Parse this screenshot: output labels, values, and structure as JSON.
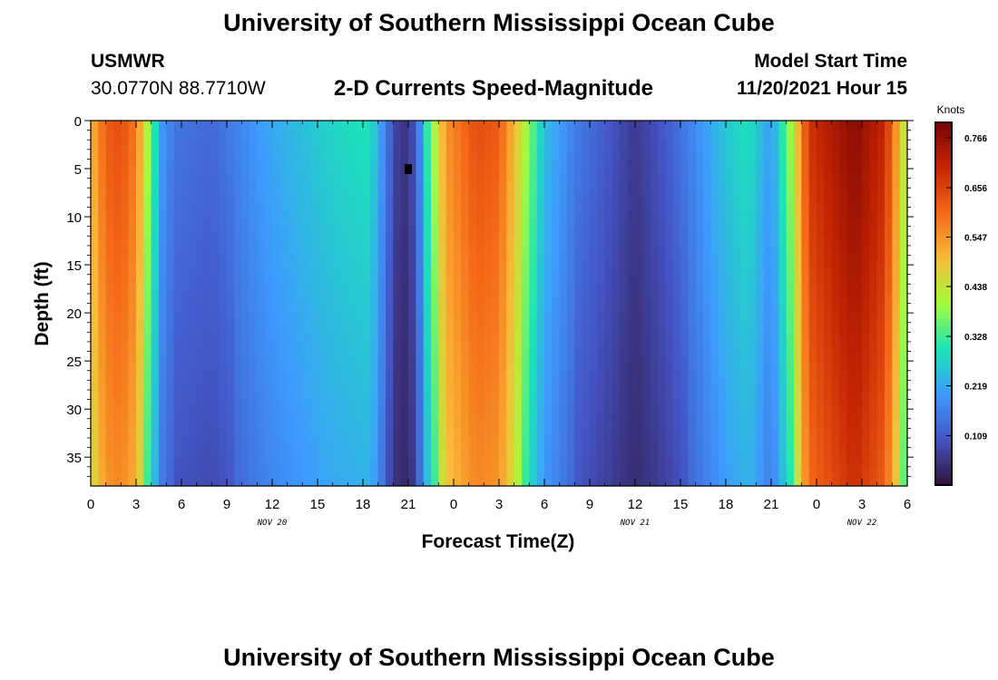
{
  "header": {
    "title": "University of Southern Mississippi Ocean Cube",
    "station": "USMWR",
    "coords": "30.0770N  88.7710W",
    "subtitle": "2-D Currents Speed-Magnitude",
    "model_label": "Model Start Time",
    "model_time": "11/20/2021 Hour 15"
  },
  "footer": {
    "title": "University of Southern Mississippi Ocean Cube"
  },
  "chart_data": {
    "type": "heatmap",
    "title": "2-D Currents Speed-Magnitude",
    "xlabel": "Forecast Time(Z)",
    "ylabel": "Depth (ft)",
    "x_hours": [
      0,
      3,
      6,
      9,
      12,
      15,
      18,
      21,
      24,
      27,
      30,
      33,
      36,
      39,
      42,
      45,
      48,
      51,
      54
    ],
    "x_tick_labels": [
      "0",
      "3",
      "6",
      "9",
      "12",
      "15",
      "18",
      "21",
      "0",
      "3",
      "6",
      "9",
      "12",
      "15",
      "18",
      "21",
      "0",
      "3",
      "6"
    ],
    "date_labels": [
      {
        "label": "NOV 20",
        "hour": 12
      },
      {
        "label": "NOV 21",
        "hour": 36
      },
      {
        "label": "NOV 22",
        "hour": 51
      }
    ],
    "x_range_hours": [
      0,
      54
    ],
    "y_range_ft": [
      0,
      38
    ],
    "y_ticks": [
      0,
      5,
      10,
      15,
      20,
      25,
      30,
      35
    ],
    "y_inverted": true,
    "colorbar": {
      "title": "Knots",
      "ticks": [
        "0.766",
        "0.656",
        "0.547",
        "0.438",
        "0.328",
        "0.219",
        "0.109"
      ],
      "range": [
        0,
        0.8
      ]
    },
    "speed_profile_knots": [
      {
        "h": 0,
        "v": 0.5
      },
      {
        "h": 1,
        "v": 0.62
      },
      {
        "h": 2,
        "v": 0.64
      },
      {
        "h": 3,
        "v": 0.58
      },
      {
        "h": 4,
        "v": 0.36
      },
      {
        "h": 4.7,
        "v": 0.2
      },
      {
        "h": 5.5,
        "v": 0.15
      },
      {
        "h": 8,
        "v": 0.13
      },
      {
        "h": 12,
        "v": 0.22
      },
      {
        "h": 16,
        "v": 0.28
      },
      {
        "h": 18.5,
        "v": 0.3
      },
      {
        "h": 19.5,
        "v": 0.16
      },
      {
        "h": 20.5,
        "v": 0.04
      },
      {
        "h": 21.5,
        "v": 0.1
      },
      {
        "h": 22.3,
        "v": 0.33
      },
      {
        "h": 23.5,
        "v": 0.55
      },
      {
        "h": 25.5,
        "v": 0.64
      },
      {
        "h": 27,
        "v": 0.62
      },
      {
        "h": 28.5,
        "v": 0.44
      },
      {
        "h": 30,
        "v": 0.25
      },
      {
        "h": 32,
        "v": 0.16
      },
      {
        "h": 34.5,
        "v": 0.1
      },
      {
        "h": 36,
        "v": 0.06
      },
      {
        "h": 38,
        "v": 0.11
      },
      {
        "h": 40,
        "v": 0.18
      },
      {
        "h": 42,
        "v": 0.26
      },
      {
        "h": 43.5,
        "v": 0.3
      },
      {
        "h": 45,
        "v": 0.2
      },
      {
        "h": 46.2,
        "v": 0.38
      },
      {
        "h": 47.5,
        "v": 0.68
      },
      {
        "h": 50.5,
        "v": 0.78
      },
      {
        "h": 52.5,
        "v": 0.7
      },
      {
        "h": 54,
        "v": 0.4
      }
    ]
  }
}
